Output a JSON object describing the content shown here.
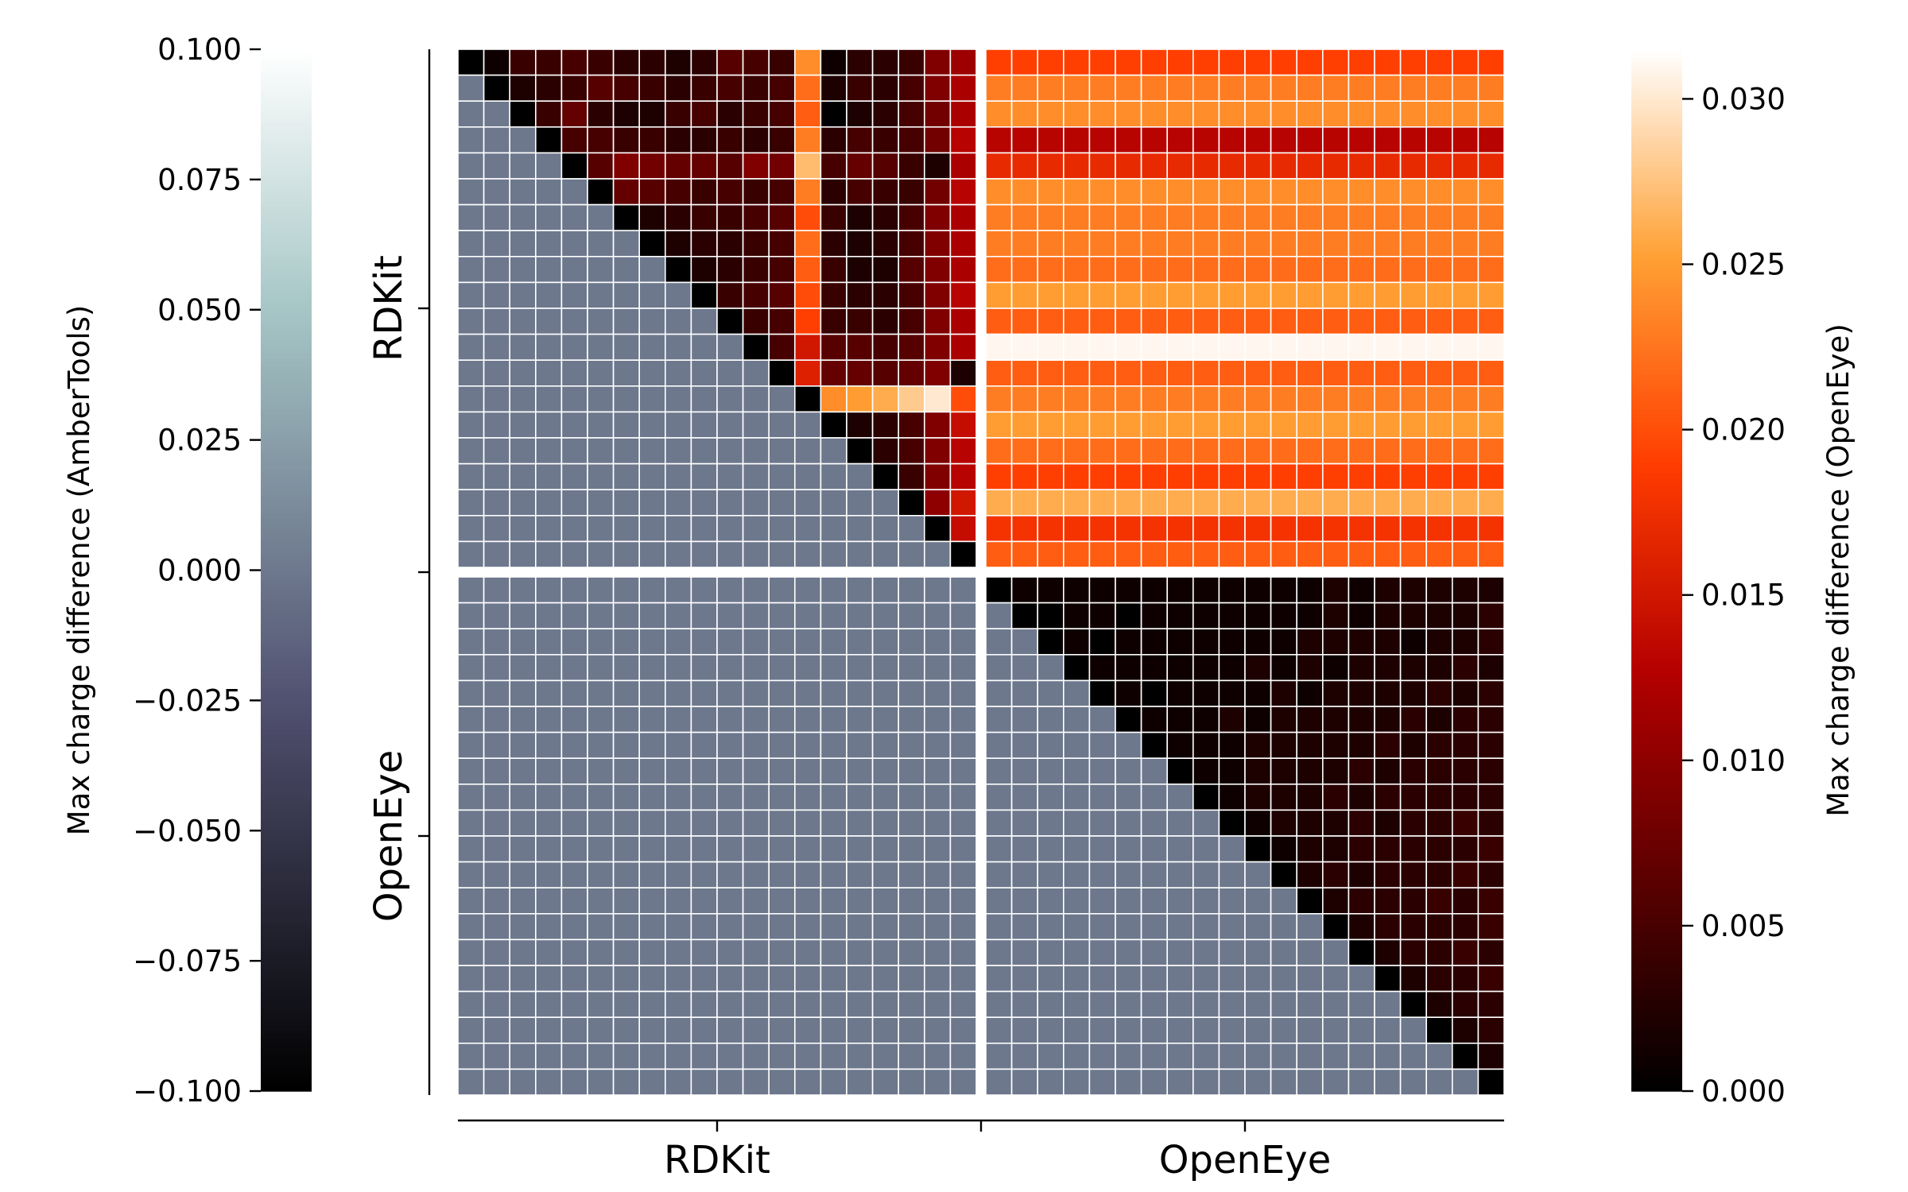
{
  "chart_data": {
    "type": "heatmap",
    "groups": [
      "RDKit",
      "OpenEye"
    ],
    "n_per_group": 20,
    "row_labels": [
      "RDKit",
      "OpenEye"
    ],
    "col_labels": [
      "RDKit",
      "OpenEye"
    ],
    "lower_triangle_value": 0.0,
    "colorbar_left": {
      "label": "Max charge difference (AmberTools)",
      "cmap": "bone",
      "range": [
        -0.1,
        0.1
      ],
      "ticks": [
        0.1,
        0.075,
        0.05,
        0.025,
        0.0,
        -0.025,
        -0.05,
        -0.075,
        -0.1
      ],
      "tick_labels": [
        "0.100",
        "0.075",
        "0.050",
        "0.025",
        "0.000",
        "−0.025",
        "−0.050",
        "−0.075",
        "−0.100"
      ]
    },
    "colorbar_right": {
      "label": "Max charge difference (OpenEye)",
      "cmap": "gist_heat",
      "range": [
        0.0,
        0.0315
      ],
      "ticks": [
        0.0,
        0.005,
        0.01,
        0.015,
        0.02,
        0.025,
        0.03
      ],
      "tick_labels": [
        "0.000",
        "0.005",
        "0.010",
        "0.015",
        "0.020",
        "0.025",
        "0.030"
      ]
    },
    "blocks": {
      "rdkit_rdkit_upper": [
        [
          0.0,
          0.001,
          0.004,
          0.004,
          0.005,
          0.004,
          0.003,
          0.003,
          0.002,
          0.003,
          0.006,
          0.005,
          0.004,
          0.024,
          0.001,
          0.003,
          0.003,
          0.004,
          0.009,
          0.011
        ],
        [
          null,
          0.0,
          0.002,
          0.003,
          0.004,
          0.006,
          0.005,
          0.004,
          0.003,
          0.004,
          0.005,
          0.004,
          0.005,
          0.022,
          0.002,
          0.004,
          0.003,
          0.005,
          0.009,
          0.012
        ],
        [
          null,
          null,
          0.0,
          0.004,
          0.007,
          0.003,
          0.002,
          0.002,
          0.004,
          0.005,
          0.003,
          0.004,
          0.005,
          0.021,
          0.0,
          0.002,
          0.003,
          0.005,
          0.008,
          0.012
        ],
        [
          null,
          null,
          null,
          0.0,
          0.005,
          0.005,
          0.004,
          0.004,
          0.003,
          0.003,
          0.004,
          0.003,
          0.004,
          0.023,
          0.003,
          0.005,
          0.004,
          0.005,
          0.008,
          0.013
        ],
        [
          null,
          null,
          null,
          null,
          0.0,
          0.006,
          0.009,
          0.008,
          0.007,
          0.007,
          0.006,
          0.009,
          0.008,
          0.027,
          0.005,
          0.007,
          0.006,
          0.004,
          0.002,
          0.012
        ],
        [
          null,
          null,
          null,
          null,
          null,
          0.0,
          0.007,
          0.006,
          0.005,
          0.004,
          0.005,
          0.004,
          0.005,
          0.023,
          0.003,
          0.005,
          0.004,
          0.004,
          0.008,
          0.013
        ],
        [
          null,
          null,
          null,
          null,
          null,
          null,
          0.0,
          0.002,
          0.003,
          0.004,
          0.004,
          0.005,
          0.006,
          0.02,
          0.004,
          0.002,
          0.003,
          0.005,
          0.009,
          0.012
        ],
        [
          null,
          null,
          null,
          null,
          null,
          null,
          null,
          0.0,
          0.002,
          0.003,
          0.003,
          0.004,
          0.005,
          0.022,
          0.003,
          0.002,
          0.003,
          0.005,
          0.009,
          0.012
        ],
        [
          null,
          null,
          null,
          null,
          null,
          null,
          null,
          null,
          0.0,
          0.002,
          0.003,
          0.004,
          0.005,
          0.021,
          0.004,
          0.002,
          0.002,
          0.006,
          0.009,
          0.012
        ],
        [
          null,
          null,
          null,
          null,
          null,
          null,
          null,
          null,
          null,
          0.0,
          0.004,
          0.005,
          0.006,
          0.02,
          0.004,
          0.003,
          0.003,
          0.005,
          0.009,
          0.013
        ],
        [
          null,
          null,
          null,
          null,
          null,
          null,
          null,
          null,
          null,
          null,
          0.0,
          0.004,
          0.005,
          0.019,
          0.004,
          0.004,
          0.003,
          0.005,
          0.009,
          0.012
        ],
        [
          null,
          null,
          null,
          null,
          null,
          null,
          null,
          null,
          null,
          null,
          null,
          0.0,
          0.005,
          0.015,
          0.006,
          0.006,
          0.005,
          0.006,
          0.009,
          0.012
        ],
        [
          null,
          null,
          null,
          null,
          null,
          null,
          null,
          null,
          null,
          null,
          null,
          null,
          0.0,
          0.016,
          0.007,
          0.007,
          0.006,
          0.007,
          0.009,
          0.002
        ],
        [
          null,
          null,
          null,
          null,
          null,
          null,
          null,
          null,
          null,
          null,
          null,
          null,
          null,
          0.0,
          0.024,
          0.025,
          0.026,
          0.028,
          0.03,
          0.02
        ],
        [
          null,
          null,
          null,
          null,
          null,
          null,
          null,
          null,
          null,
          null,
          null,
          null,
          null,
          null,
          0.0,
          0.002,
          0.003,
          0.005,
          0.009,
          0.014
        ],
        [
          null,
          null,
          null,
          null,
          null,
          null,
          null,
          null,
          null,
          null,
          null,
          null,
          null,
          null,
          null,
          0.0,
          0.003,
          0.005,
          0.009,
          0.013
        ],
        [
          null,
          null,
          null,
          null,
          null,
          null,
          null,
          null,
          null,
          null,
          null,
          null,
          null,
          null,
          null,
          null,
          0.0,
          0.004,
          0.009,
          0.013
        ],
        [
          null,
          null,
          null,
          null,
          null,
          null,
          null,
          null,
          null,
          null,
          null,
          null,
          null,
          null,
          null,
          null,
          null,
          0.0,
          0.01,
          0.015
        ],
        [
          null,
          null,
          null,
          null,
          null,
          null,
          null,
          null,
          null,
          null,
          null,
          null,
          null,
          null,
          null,
          null,
          null,
          null,
          0.0,
          0.014
        ],
        [
          null,
          null,
          null,
          null,
          null,
          null,
          null,
          null,
          null,
          null,
          null,
          null,
          null,
          null,
          null,
          null,
          null,
          null,
          null,
          0.0
        ]
      ],
      "rdkit_openeye_row_values": [
        0.019,
        0.023,
        0.024,
        0.013,
        0.017,
        0.024,
        0.023,
        0.023,
        0.022,
        0.025,
        0.021,
        0.031,
        0.021,
        0.023,
        0.025,
        0.022,
        0.019,
        0.026,
        0.018,
        0.021
      ],
      "openeye_openeye_upper": [
        [
          0.0,
          0.001,
          0.001,
          0.001,
          0.001,
          0.001,
          0.001,
          0.001,
          0.001,
          0.001,
          0.001,
          0.001,
          0.001,
          0.002,
          0.001,
          0.002,
          0.002,
          0.002,
          0.002,
          0.002
        ],
        [
          null,
          0.0,
          0.0,
          0.001,
          0.001,
          0.0,
          0.001,
          0.001,
          0.001,
          0.001,
          0.001,
          0.001,
          0.001,
          0.002,
          0.001,
          0.002,
          0.002,
          0.002,
          0.002,
          0.003
        ],
        [
          null,
          null,
          0.0,
          0.001,
          0.0,
          0.001,
          0.001,
          0.001,
          0.001,
          0.001,
          0.001,
          0.001,
          0.002,
          0.002,
          0.002,
          0.002,
          0.001,
          0.002,
          0.002,
          0.003
        ],
        [
          null,
          null,
          null,
          0.0,
          0.001,
          0.001,
          0.001,
          0.001,
          0.001,
          0.001,
          0.002,
          0.001,
          0.002,
          0.001,
          0.002,
          0.002,
          0.002,
          0.002,
          0.003,
          0.002
        ],
        [
          null,
          null,
          null,
          null,
          0.0,
          0.001,
          0.0,
          0.001,
          0.001,
          0.001,
          0.001,
          0.002,
          0.001,
          0.002,
          0.002,
          0.002,
          0.002,
          0.003,
          0.002,
          0.003
        ],
        [
          null,
          null,
          null,
          null,
          null,
          0.0,
          0.001,
          0.001,
          0.001,
          0.002,
          0.001,
          0.002,
          0.002,
          0.002,
          0.002,
          0.002,
          0.003,
          0.002,
          0.003,
          0.003
        ],
        [
          null,
          null,
          null,
          null,
          null,
          null,
          0.0,
          0.001,
          0.001,
          0.001,
          0.002,
          0.002,
          0.002,
          0.002,
          0.002,
          0.003,
          0.002,
          0.003,
          0.003,
          0.003
        ],
        [
          null,
          null,
          null,
          null,
          null,
          null,
          null,
          0.0,
          0.001,
          0.001,
          0.002,
          0.002,
          0.002,
          0.002,
          0.003,
          0.002,
          0.003,
          0.003,
          0.003,
          0.003
        ],
        [
          null,
          null,
          null,
          null,
          null,
          null,
          null,
          null,
          0.0,
          0.001,
          0.002,
          0.002,
          0.002,
          0.003,
          0.002,
          0.003,
          0.003,
          0.003,
          0.003,
          0.003
        ],
        [
          null,
          null,
          null,
          null,
          null,
          null,
          null,
          null,
          null,
          0.0,
          0.001,
          0.002,
          0.002,
          0.002,
          0.003,
          0.002,
          0.003,
          0.003,
          0.004,
          0.003
        ],
        [
          null,
          null,
          null,
          null,
          null,
          null,
          null,
          null,
          null,
          null,
          0.0,
          0.001,
          0.002,
          0.002,
          0.003,
          0.003,
          0.003,
          0.003,
          0.003,
          0.004
        ],
        [
          null,
          null,
          null,
          null,
          null,
          null,
          null,
          null,
          null,
          null,
          null,
          0.0,
          0.002,
          0.003,
          0.002,
          0.003,
          0.003,
          0.003,
          0.004,
          0.003
        ],
        [
          null,
          null,
          null,
          null,
          null,
          null,
          null,
          null,
          null,
          null,
          null,
          null,
          0.0,
          0.002,
          0.003,
          0.003,
          0.003,
          0.004,
          0.003,
          0.004
        ],
        [
          null,
          null,
          null,
          null,
          null,
          null,
          null,
          null,
          null,
          null,
          null,
          null,
          null,
          0.0,
          0.002,
          0.003,
          0.003,
          0.003,
          0.003,
          0.004
        ],
        [
          null,
          null,
          null,
          null,
          null,
          null,
          null,
          null,
          null,
          null,
          null,
          null,
          null,
          null,
          0.0,
          0.002,
          0.003,
          0.003,
          0.004,
          0.003
        ],
        [
          null,
          null,
          null,
          null,
          null,
          null,
          null,
          null,
          null,
          null,
          null,
          null,
          null,
          null,
          null,
          0.0,
          0.002,
          0.003,
          0.003,
          0.004
        ],
        [
          null,
          null,
          null,
          null,
          null,
          null,
          null,
          null,
          null,
          null,
          null,
          null,
          null,
          null,
          null,
          null,
          0.0,
          0.002,
          0.003,
          0.003
        ],
        [
          null,
          null,
          null,
          null,
          null,
          null,
          null,
          null,
          null,
          null,
          null,
          null,
          null,
          null,
          null,
          null,
          null,
          0.0,
          0.002,
          0.003
        ],
        [
          null,
          null,
          null,
          null,
          null,
          null,
          null,
          null,
          null,
          null,
          null,
          null,
          null,
          null,
          null,
          null,
          null,
          null,
          0.0,
          0.002
        ],
        [
          null,
          null,
          null,
          null,
          null,
          null,
          null,
          null,
          null,
          null,
          null,
          null,
          null,
          null,
          null,
          null,
          null,
          null,
          null,
          0.0
        ]
      ]
    }
  }
}
